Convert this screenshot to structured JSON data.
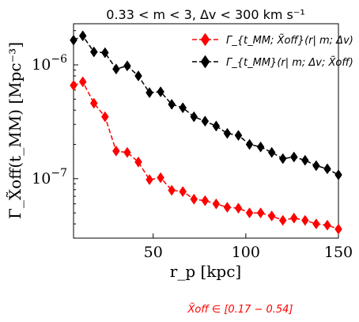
{
  "chart_data": {
    "type": "line",
    "title": "0.33 < m < 3, Δv < 300 km s⁻¹",
    "xlabel": "r_p [kpc]",
    "ylabel": "Γ_X̃off(t_MM) [Mpc⁻³]",
    "xscale": "linear",
    "yscale": "log",
    "xlim": [
      7,
      150
    ],
    "ylim": [
      3e-08,
      2.3e-06
    ],
    "xticks": [
      50,
      100,
      150
    ],
    "xtick_labels": [
      "50",
      "100",
      "150"
    ],
    "yticks": [
      1e-07,
      1e-06
    ],
    "grid": false,
    "legend_position": "top-right",
    "x": [
      7,
      12,
      18,
      24,
      30,
      36,
      42,
      48,
      54,
      60,
      66,
      72,
      78,
      84,
      90,
      96,
      102,
      108,
      114,
      120,
      126,
      132,
      138,
      144,
      150
    ],
    "series": [
      {
        "name": "Γ_{t_MM; X̃off}(r| m; Δv)",
        "color": "#ff0000",
        "marker": "diamond",
        "linestyle": "dashed",
        "values": [
          6.6e-07,
          7.1e-07,
          4.6e-07,
          3.5e-07,
          1.75e-07,
          1.7e-07,
          1.4e-07,
          9.8e-08,
          1.02e-07,
          7.9e-08,
          7.7e-08,
          6.6e-08,
          6.4e-08,
          6e-08,
          5.6e-08,
          5.5e-08,
          5e-08,
          5e-08,
          4.7e-08,
          4.3e-08,
          4.5e-08,
          4.3e-08,
          4e-08,
          3.9e-08,
          3.6e-08
        ]
      },
      {
        "name": "Γ_{t_MM}(r| m; Δv; X̃off)",
        "color": "#000000",
        "marker": "diamond",
        "linestyle": "dashed",
        "values": [
          1.65e-06,
          1.8e-06,
          1.3e-06,
          1.28e-06,
          9.2e-07,
          9.8e-07,
          8e-07,
          5.7e-07,
          5.8e-07,
          4.5e-07,
          4.2e-07,
          3.5e-07,
          3.2e-07,
          2.9e-07,
          2.5e-07,
          2.4e-07,
          2e-07,
          1.9e-07,
          1.7e-07,
          1.5e-07,
          1.55e-07,
          1.45e-07,
          1.3e-07,
          1.22e-07,
          1.08e-07
        ]
      }
    ]
  },
  "colors": {
    "red": "#ff0000",
    "black": "#000000"
  },
  "note": "X̃off ∈ [0.17 − 0.54]"
}
